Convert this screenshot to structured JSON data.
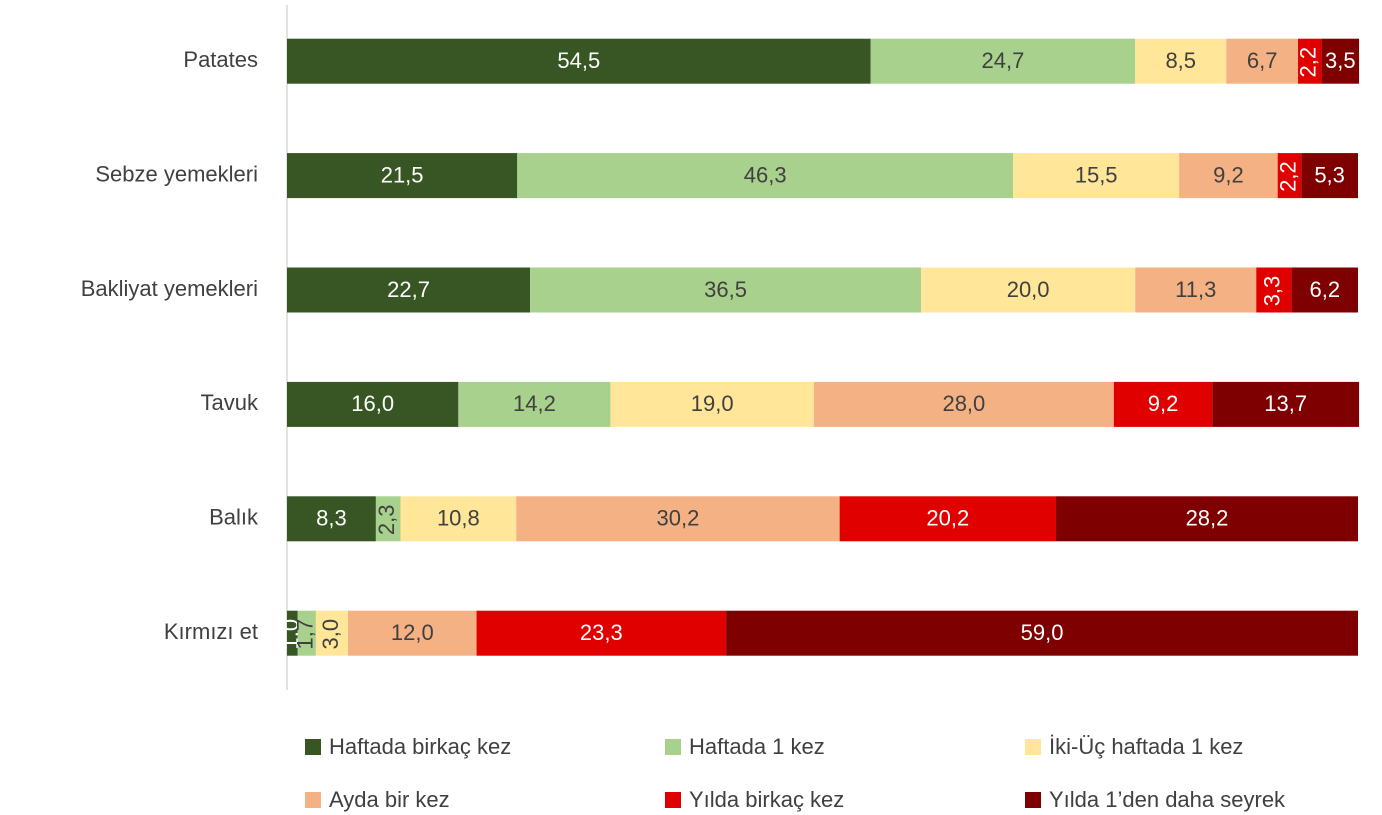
{
  "chart_data": {
    "type": "stacked_bar_horizontal",
    "categories": [
      "Patates",
      "Sebze yemekleri",
      "Bakliyat yemekleri",
      "Tavuk",
      "Balık",
      "Kırmızı et"
    ],
    "xlim": [
      0,
      100
    ],
    "legend": "bottom",
    "series": [
      {
        "name": "Haftada birkaç kez",
        "color": "#375623",
        "values": [
          54.5,
          21.5,
          22.7,
          16.0,
          8.3,
          1.0
        ],
        "value_labels": [
          "54,5",
          "21,5",
          "22,7",
          "16,0",
          "8,3",
          "1,0"
        ]
      },
      {
        "name": "Haftada 1 kez",
        "color": "#a9d18e",
        "values": [
          24.7,
          46.3,
          36.5,
          14.2,
          2.3,
          1.7
        ],
        "value_labels": [
          "24,7",
          "46,3",
          "36,5",
          "14,2",
          "2,3",
          "1,7"
        ]
      },
      {
        "name": "İki-Üç haftada 1 kez",
        "color": "#ffe699",
        "values": [
          8.5,
          15.5,
          20.0,
          19.0,
          10.8,
          3.0
        ],
        "value_labels": [
          "8,5",
          "15,5",
          "20,0",
          "19,0",
          "10,8",
          "3,0"
        ]
      },
      {
        "name": "Ayda bir kez",
        "color": "#f4b183",
        "values": [
          6.7,
          9.2,
          11.3,
          28.0,
          30.2,
          12.0
        ],
        "value_labels": [
          "6,7",
          "9,2",
          "11,3",
          "28,0",
          "30,2",
          "12,0"
        ]
      },
      {
        "name": "Yılda birkaç kez",
        "color": "#e00000",
        "values": [
          2.2,
          2.2,
          3.3,
          9.2,
          20.2,
          23.3
        ],
        "value_labels": [
          "2,2",
          "2,2",
          "3,3",
          "9,2",
          "20,2",
          "23,3"
        ]
      },
      {
        "name": "Yılda 1’den daha seyrek",
        "color": "#7f0000",
        "values": [
          3.5,
          5.3,
          6.2,
          13.7,
          28.2,
          59.0
        ],
        "value_labels": [
          "3,5",
          "5,3",
          "6,2",
          "13,7",
          "28,2",
          "59,0"
        ]
      }
    ]
  }
}
